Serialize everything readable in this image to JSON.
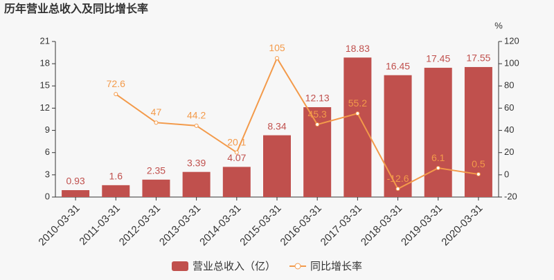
{
  "chart_data": {
    "type": "bar",
    "title": "历年营业总收入及同比增长率",
    "categories": [
      "2010-03-31",
      "2011-03-31",
      "2012-03-31",
      "2013-03-31",
      "2014-03-31",
      "2015-03-31",
      "2016-03-31",
      "2017-03-31",
      "2018-03-31",
      "2019-03-31",
      "2020-03-31"
    ],
    "series": [
      {
        "name": "营业总收入（亿）",
        "type": "bar",
        "color": "#c0504d",
        "values": [
          0.93,
          1.6,
          2.35,
          3.39,
          4.07,
          8.34,
          12.13,
          18.83,
          16.45,
          17.45,
          17.55
        ]
      },
      {
        "name": "同比增长率",
        "type": "line",
        "axis": "y2",
        "color": "#f39a4a",
        "values": [
          null,
          72.6,
          47,
          44.2,
          20.1,
          105,
          45.3,
          55.2,
          -12.6,
          6.1,
          0.5
        ]
      }
    ],
    "ylim": [
      0,
      21
    ],
    "yticks": [
      0,
      3,
      6,
      9,
      12,
      15,
      18,
      21
    ],
    "y2lim": [
      -20,
      120
    ],
    "y2ticks": [
      -20,
      0,
      20,
      40,
      60,
      80,
      100,
      120
    ],
    "y2_label": "%",
    "grid": false
  }
}
